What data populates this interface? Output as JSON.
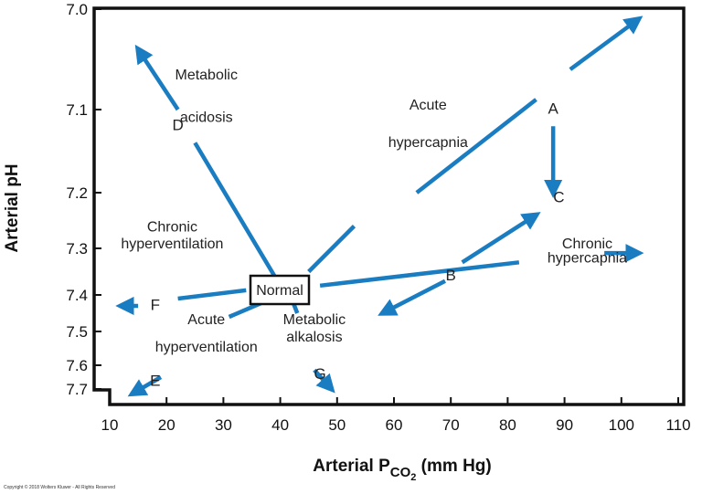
{
  "chart_data": {
    "type": "line",
    "xlabel_prefix": "Arterial P",
    "xlabel_sub": "CO",
    "xlabel_subsub": "2",
    "xlabel_suffix": " (mm Hg)",
    "ylabel": "Arterial pH",
    "xlim": [
      10,
      110
    ],
    "x_ticks": [
      "10",
      "20",
      "30",
      "40",
      "50",
      "60",
      "70",
      "80",
      "90",
      "100",
      "110"
    ],
    "y_ticks": [
      {
        "label": "7.0",
        "value": 7.0
      },
      {
        "label": "7.1",
        "value": 7.1
      },
      {
        "label": "7.2",
        "value": 7.2
      },
      {
        "label": "7.3",
        "value": 7.3
      },
      {
        "label": "7.4",
        "value": 7.4
      },
      {
        "label": "7.5",
        "value": 7.5
      },
      {
        "label": "7.6",
        "value": 7.6
      },
      {
        "label": "7.7",
        "value": 7.7
      }
    ],
    "normal_label": "Normal",
    "normal_point": {
      "x": 40,
      "y": 7.4
    },
    "arrow_color": "#1a7cc1",
    "series": [
      {
        "id": "metabolic-acidosis",
        "segments": [
          [
            40,
            7.38,
            25,
            7.14
          ],
          [
            22,
            7.1,
            15,
            7.04
          ]
        ],
        "arrow": true
      },
      {
        "id": "acute-hypercapnia",
        "segments": [
          [
            45,
            7.35,
            53,
            7.26
          ],
          [
            64,
            7.2,
            85,
            7.09
          ],
          [
            91,
            7.06,
            103,
            7.01
          ]
        ],
        "arrow": true
      },
      {
        "id": "a-to-c",
        "segments": [
          [
            88,
            7.12,
            88,
            7.2
          ]
        ],
        "arrow": true
      },
      {
        "id": "chronic-hypercapnia",
        "segments": [
          [
            47,
            7.38,
            82,
            7.33
          ],
          [
            97,
            7.31,
            103,
            7.31
          ]
        ],
        "arrow": true
      },
      {
        "id": "b-to-c",
        "segments": [
          [
            72,
            7.33,
            85,
            7.24
          ]
        ],
        "arrow": true
      },
      {
        "id": "b-from-acute-hyperventilation",
        "segments": [
          [
            69,
            7.37,
            58,
            7.45
          ]
        ],
        "arrow": true
      },
      {
        "id": "chronic-hyperventilation",
        "segments": [
          [
            34,
            7.39,
            22,
            7.41
          ],
          [
            15,
            7.43,
            12,
            7.43
          ]
        ],
        "arrow": true
      },
      {
        "id": "acute-hyperventilation",
        "segments": [
          [
            37,
            7.42,
            31,
            7.46
          ],
          [
            19,
            7.65,
            14,
            7.72
          ]
        ],
        "arrow": true
      },
      {
        "id": "metabolic-alkalosis",
        "segments": [
          [
            42,
            7.41,
            43,
            7.45
          ],
          [
            46,
            7.62,
            49,
            7.7
          ]
        ],
        "arrow": true
      }
    ],
    "annotations": [
      {
        "id": "metabolic-acidosis",
        "lines": [
          "Metabolic",
          "acidosis"
        ],
        "x": 27,
        "y": [
          7.07,
          7.115
        ]
      },
      {
        "id": "acute-hypercapnia",
        "lines": [
          "Acute",
          "hypercapnia"
        ],
        "x": 66,
        "y": [
          7.1,
          7.145
        ]
      },
      {
        "id": "chronic-hyperventilation",
        "lines": [
          "Chronic",
          "hyperventilation"
        ],
        "x": 21,
        "y": [
          7.27,
          7.3
        ]
      },
      {
        "id": "chronic-hypercapnia",
        "lines": [
          "Chronic",
          "hypercapnia"
        ],
        "x": 94,
        "y": [
          7.3,
          7.33
        ]
      },
      {
        "id": "acute-hyperventilation",
        "lines": [
          "Acute",
          "hyperventilation"
        ],
        "x": 27,
        "y": [
          7.48,
          7.56
        ]
      },
      {
        "id": "metabolic-alkalosis",
        "lines": [
          "Metabolic",
          "alkalosis"
        ],
        "x": 46,
        "y": [
          7.48,
          7.53
        ]
      }
    ],
    "letters": [
      {
        "label": "A",
        "x": 88,
        "y": 7.1
      },
      {
        "label": "B",
        "x": 70,
        "y": 7.36
      },
      {
        "label": "C",
        "x": 89,
        "y": 7.21
      },
      {
        "label": "D",
        "x": 22,
        "y": 7.12
      },
      {
        "label": "E",
        "x": 18,
        "y": 7.67
      },
      {
        "label": "F",
        "x": 18,
        "y": 7.43
      },
      {
        "label": "G",
        "x": 47,
        "y": 7.64
      }
    ]
  },
  "copyright": "Copyright © 2018 Wolters Kluwer - All Rights Reserved"
}
